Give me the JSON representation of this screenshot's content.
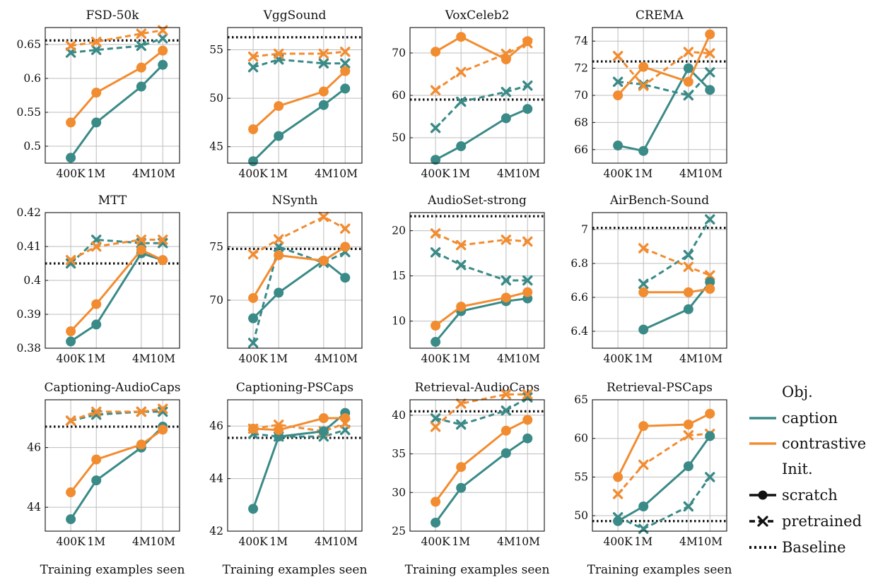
{
  "colors": {
    "caption": "#3a8a87",
    "contrastive": "#f28c30",
    "baseline": "#111111",
    "grid": "#bdbdbd"
  },
  "legend": {
    "obj_title": "Obj.",
    "caption": "caption",
    "contrastive": "contrastive",
    "init_title": "Init.",
    "scratch": "scratch",
    "pretrained": "pretrained",
    "baseline": "Baseline"
  },
  "xlabel": "Training examples seen",
  "chart_data": [
    {
      "type": "line",
      "title": "FSD-50k",
      "x_ticks": [
        "400K",
        "1M",
        "4M",
        "10M"
      ],
      "ylim": [
        0.475,
        0.675
      ],
      "y_ticks": [
        {
          "v": 0.5,
          "label": "0.5"
        },
        {
          "v": 0.55,
          "label": "0.55"
        },
        {
          "v": 0.6,
          "label": "0.6"
        },
        {
          "v": 0.65,
          "label": "0.65"
        }
      ],
      "baseline": 0.656,
      "series": [
        {
          "obj": "caption",
          "init": "scratch",
          "values": [
            0.483,
            0.535,
            0.588,
            0.62
          ]
        },
        {
          "obj": "contrastive",
          "init": "scratch",
          "values": [
            0.535,
            0.579,
            0.616,
            0.641
          ]
        },
        {
          "obj": "caption",
          "init": "pretrained",
          "values": [
            0.638,
            0.642,
            0.648,
            0.659
          ]
        },
        {
          "obj": "contrastive",
          "init": "pretrained",
          "values": [
            0.648,
            0.654,
            0.666,
            0.671
          ]
        }
      ]
    },
    {
      "type": "line",
      "title": "VggSound",
      "x_ticks": [
        "400K",
        "1M",
        "4M",
        "10M"
      ],
      "ylim": [
        43.3,
        57.3
      ],
      "y_ticks": [
        {
          "v": 45,
          "label": "45"
        },
        {
          "v": 50,
          "label": "50"
        },
        {
          "v": 55,
          "label": "55"
        }
      ],
      "baseline": 56.3,
      "series": [
        {
          "obj": "caption",
          "init": "scratch",
          "values": [
            43.5,
            46.1,
            49.3,
            51.0
          ]
        },
        {
          "obj": "contrastive",
          "init": "scratch",
          "values": [
            46.8,
            49.2,
            50.7,
            52.8
          ]
        },
        {
          "obj": "caption",
          "init": "pretrained",
          "values": [
            53.2,
            54.0,
            53.6,
            53.6
          ]
        },
        {
          "obj": "contrastive",
          "init": "pretrained",
          "values": [
            54.3,
            54.6,
            54.6,
            54.8
          ]
        }
      ]
    },
    {
      "type": "line",
      "title": "VoxCeleb2",
      "x_ticks": [
        "400K",
        "1M",
        "4M",
        "10M"
      ],
      "ylim": [
        44,
        76
      ],
      "y_ticks": [
        {
          "v": 50,
          "label": "50"
        },
        {
          "v": 60,
          "label": "60"
        },
        {
          "v": 70,
          "label": "70"
        }
      ],
      "baseline": 59,
      "series": [
        {
          "obj": "caption",
          "init": "scratch",
          "values": [
            44.8,
            48.0,
            54.6,
            56.8
          ]
        },
        {
          "obj": "contrastive",
          "init": "scratch",
          "values": [
            70.3,
            73.8,
            68.5,
            72.8
          ]
        },
        {
          "obj": "caption",
          "init": "pretrained",
          "values": [
            52.3,
            58.5,
            60.8,
            62.3
          ]
        },
        {
          "obj": "contrastive",
          "init": "pretrained",
          "values": [
            61.2,
            65.5,
            69.8,
            72.3
          ]
        }
      ]
    },
    {
      "type": "line",
      "title": "CREMA",
      "x_ticks": [
        "400K",
        "1M",
        "4M",
        "10M"
      ],
      "ylim": [
        65,
        75
      ],
      "y_ticks": [
        {
          "v": 66,
          "label": "66"
        },
        {
          "v": 68,
          "label": "68"
        },
        {
          "v": 70,
          "label": "70"
        },
        {
          "v": 72,
          "label": "72"
        },
        {
          "v": 74,
          "label": "74"
        }
      ],
      "baseline": 72.5,
      "series": [
        {
          "obj": "caption",
          "init": "scratch",
          "values": [
            66.3,
            65.9,
            72.0,
            70.4
          ]
        },
        {
          "obj": "contrastive",
          "init": "scratch",
          "values": [
            70.0,
            72.1,
            71.0,
            74.5
          ]
        },
        {
          "obj": "caption",
          "init": "pretrained",
          "values": [
            71.0,
            70.8,
            70.0,
            71.7
          ]
        },
        {
          "obj": "contrastive",
          "init": "pretrained",
          "values": [
            72.9,
            70.7,
            73.2,
            73.1
          ]
        }
      ]
    },
    {
      "type": "line",
      "title": "MTT",
      "x_ticks": [
        "400K",
        "1M",
        "4M",
        "10M"
      ],
      "ylim": [
        0.38,
        0.42
      ],
      "y_ticks": [
        {
          "v": 0.38,
          "label": "0.38"
        },
        {
          "v": 0.39,
          "label": "0.39"
        },
        {
          "v": 0.4,
          "label": "0.4"
        },
        {
          "v": 0.41,
          "label": "0.41"
        },
        {
          "v": 0.42,
          "label": "0.42"
        }
      ],
      "baseline": 0.405,
      "series": [
        {
          "obj": "caption",
          "init": "scratch",
          "values": [
            0.382,
            0.387,
            0.408,
            0.406
          ]
        },
        {
          "obj": "contrastive",
          "init": "scratch",
          "values": [
            0.385,
            0.393,
            0.409,
            0.406
          ]
        },
        {
          "obj": "caption",
          "init": "pretrained",
          "values": [
            0.405,
            0.412,
            0.411,
            0.411
          ]
        },
        {
          "obj": "contrastive",
          "init": "pretrained",
          "values": [
            0.406,
            0.41,
            0.412,
            0.412
          ]
        }
      ]
    },
    {
      "type": "line",
      "title": "NSynth",
      "x_ticks": [
        "400K",
        "1M",
        "4M",
        "10M"
      ],
      "ylim": [
        65.5,
        78.2
      ],
      "y_ticks": [
        {
          "v": 70,
          "label": "70"
        },
        {
          "v": 75,
          "label": "75"
        }
      ],
      "baseline": 74.8,
      "series": [
        {
          "obj": "caption",
          "init": "scratch",
          "values": [
            68.3,
            70.7,
            73.7,
            72.1
          ]
        },
        {
          "obj": "contrastive",
          "init": "scratch",
          "values": [
            70.2,
            74.2,
            73.7,
            75.0
          ]
        },
        {
          "obj": "caption",
          "init": "pretrained",
          "values": [
            66.0,
            75.0,
            73.5,
            74.5
          ]
        },
        {
          "obj": "contrastive",
          "init": "pretrained",
          "values": [
            74.3,
            75.7,
            77.8,
            76.7
          ]
        }
      ]
    },
    {
      "type": "line",
      "title": "AudioSet-strong",
      "x_ticks": [
        "400K",
        "1M",
        "4M",
        "10M"
      ],
      "ylim": [
        7,
        22
      ],
      "y_ticks": [
        {
          "v": 10,
          "label": "10"
        },
        {
          "v": 15,
          "label": "15"
        },
        {
          "v": 20,
          "label": "20"
        }
      ],
      "baseline": 21.6,
      "series": [
        {
          "obj": "caption",
          "init": "scratch",
          "values": [
            7.7,
            11.1,
            12.2,
            12.5
          ]
        },
        {
          "obj": "contrastive",
          "init": "scratch",
          "values": [
            9.5,
            11.6,
            12.6,
            13.2
          ]
        },
        {
          "obj": "caption",
          "init": "pretrained",
          "values": [
            17.6,
            16.2,
            14.5,
            14.5
          ]
        },
        {
          "obj": "contrastive",
          "init": "pretrained",
          "values": [
            19.7,
            18.4,
            19.0,
            18.8
          ]
        }
      ]
    },
    {
      "type": "line",
      "title": "AirBench-Sound",
      "x_ticks": [
        "400K",
        "1M",
        "4M",
        "10M"
      ],
      "ylim": [
        6.3,
        7.1
      ],
      "y_ticks": [
        {
          "v": 6.4,
          "label": "6.4"
        },
        {
          "v": 6.6,
          "label": "6.6"
        },
        {
          "v": 6.8,
          "label": "6.8"
        },
        {
          "v": 7,
          "label": "7"
        }
      ],
      "baseline": 7.01,
      "series": [
        {
          "obj": "caption",
          "init": "scratch",
          "values": [
            null,
            6.41,
            6.53,
            6.69
          ]
        },
        {
          "obj": "contrastive",
          "init": "scratch",
          "values": [
            null,
            6.63,
            6.63,
            6.65
          ]
        },
        {
          "obj": "caption",
          "init": "pretrained",
          "values": [
            null,
            6.68,
            6.85,
            7.06
          ]
        },
        {
          "obj": "contrastive",
          "init": "pretrained",
          "values": [
            null,
            6.89,
            6.78,
            6.73
          ]
        }
      ]
    },
    {
      "type": "line",
      "title": "Captioning-AudioCaps",
      "x_ticks": [
        "400K",
        "1M",
        "4M",
        "10M"
      ],
      "ylim": [
        43.2,
        47.6
      ],
      "y_ticks": [
        {
          "v": 44,
          "label": "44"
        },
        {
          "v": 46,
          "label": "46"
        }
      ],
      "baseline": 46.7,
      "series": [
        {
          "obj": "caption",
          "init": "scratch",
          "values": [
            43.6,
            44.9,
            46.0,
            46.7
          ]
        },
        {
          "obj": "contrastive",
          "init": "scratch",
          "values": [
            44.5,
            45.6,
            46.1,
            46.6
          ]
        },
        {
          "obj": "caption",
          "init": "pretrained",
          "values": [
            46.9,
            47.1,
            47.2,
            47.2
          ]
        },
        {
          "obj": "contrastive",
          "init": "pretrained",
          "values": [
            46.9,
            47.2,
            47.2,
            47.3
          ]
        }
      ]
    },
    {
      "type": "line",
      "title": "Captioning-PSCaps",
      "x_ticks": [
        "400K",
        "1M",
        "4M",
        "10M"
      ],
      "ylim": [
        42,
        47
      ],
      "y_ticks": [
        {
          "v": 42,
          "label": "42"
        },
        {
          "v": 44,
          "label": "44"
        },
        {
          "v": 46,
          "label": "46"
        }
      ],
      "baseline": 45.55,
      "series": [
        {
          "obj": "caption",
          "init": "scratch",
          "values": [
            42.85,
            45.6,
            45.8,
            46.5
          ]
        },
        {
          "obj": "contrastive",
          "init": "scratch",
          "values": [
            45.9,
            45.85,
            46.3,
            46.3
          ]
        },
        {
          "obj": "caption",
          "init": "pretrained",
          "values": [
            45.7,
            45.6,
            45.6,
            45.85
          ]
        },
        {
          "obj": "contrastive",
          "init": "pretrained",
          "values": [
            45.9,
            46.05,
            45.8,
            46.1
          ]
        }
      ]
    },
    {
      "type": "line",
      "title": "Retrieval-AudioCaps",
      "x_ticks": [
        "400K",
        "1M",
        "4M",
        "10M"
      ],
      "ylim": [
        25,
        42
      ],
      "y_ticks": [
        {
          "v": 25,
          "label": "25"
        },
        {
          "v": 30,
          "label": "30"
        },
        {
          "v": 35,
          "label": "35"
        },
        {
          "v": 40,
          "label": "40"
        }
      ],
      "baseline": 40.5,
      "series": [
        {
          "obj": "caption",
          "init": "scratch",
          "values": [
            26.1,
            30.6,
            35.1,
            37.0
          ]
        },
        {
          "obj": "contrastive",
          "init": "scratch",
          "values": [
            28.8,
            33.3,
            38.0,
            39.4
          ]
        },
        {
          "obj": "caption",
          "init": "pretrained",
          "values": [
            39.6,
            38.8,
            40.6,
            42.3
          ]
        },
        {
          "obj": "contrastive",
          "init": "pretrained",
          "values": [
            38.5,
            41.5,
            42.7,
            42.7
          ]
        }
      ]
    },
    {
      "type": "line",
      "title": "Retrieval-PSCaps",
      "x_ticks": [
        "400K",
        "1M",
        "4M",
        "10M"
      ],
      "ylim": [
        48,
        65
      ],
      "y_ticks": [
        {
          "v": 50,
          "label": "50"
        },
        {
          "v": 55,
          "label": "55"
        },
        {
          "v": 60,
          "label": "60"
        },
        {
          "v": 65,
          "label": "65"
        }
      ],
      "baseline": 49.3,
      "series": [
        {
          "obj": "caption",
          "init": "scratch",
          "values": [
            49.3,
            51.2,
            56.4,
            60.3
          ]
        },
        {
          "obj": "contrastive",
          "init": "scratch",
          "values": [
            55.0,
            61.6,
            61.8,
            63.2
          ]
        },
        {
          "obj": "caption",
          "init": "pretrained",
          "values": [
            49.8,
            48.3,
            51.2,
            55.0
          ]
        },
        {
          "obj": "contrastive",
          "init": "pretrained",
          "values": [
            52.8,
            56.6,
            60.4,
            60.6
          ]
        }
      ]
    }
  ]
}
